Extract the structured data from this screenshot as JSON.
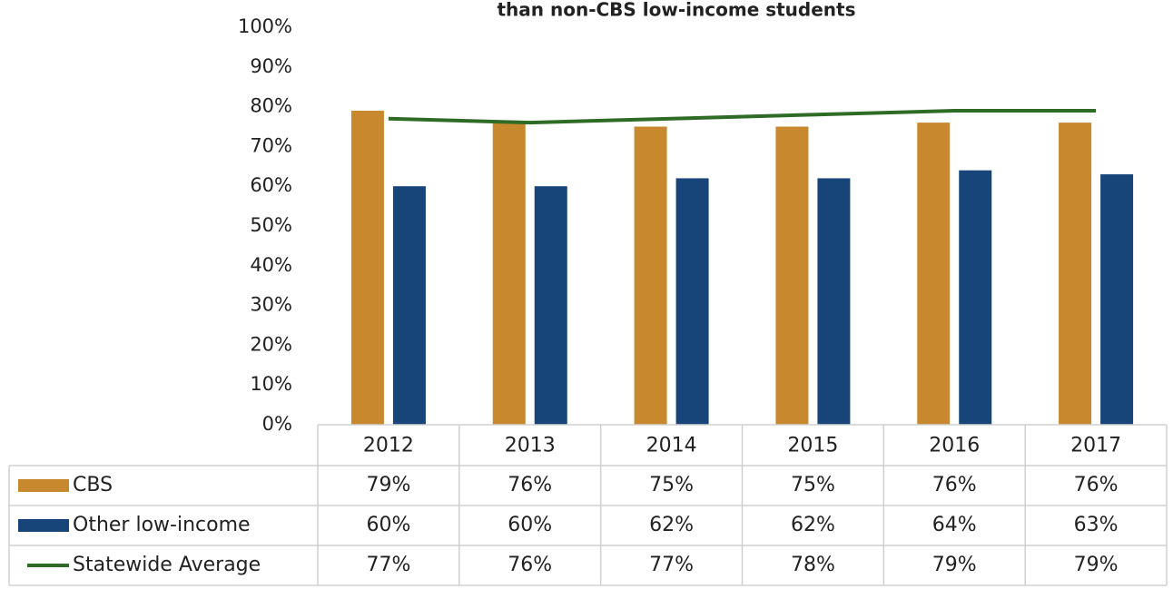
{
  "chart_data": {
    "type": "bar",
    "title": "than non-CBS low-income students",
    "categories": [
      "2012",
      "2013",
      "2014",
      "2015",
      "2016",
      "2017"
    ],
    "series": [
      {
        "name": "CBS",
        "type": "bar",
        "color": "#c8892e",
        "values": [
          79,
          76,
          75,
          75,
          76,
          76
        ],
        "value_labels": [
          "79%",
          "76%",
          "75%",
          "75%",
          "76%",
          "76%"
        ]
      },
      {
        "name": "Other low-income",
        "type": "bar",
        "color": "#17457a",
        "values": [
          60,
          60,
          62,
          62,
          64,
          63
        ],
        "value_labels": [
          "60%",
          "60%",
          "62%",
          "62%",
          "64%",
          "63%"
        ]
      },
      {
        "name": "Statewide Average",
        "type": "line",
        "color": "#2e6b25",
        "values": [
          77,
          76,
          77,
          78,
          79,
          79
        ],
        "value_labels": [
          "77%",
          "76%",
          "77%",
          "78%",
          "79%",
          "79%"
        ]
      }
    ],
    "ylim": [
      0,
      100
    ],
    "yticks": [
      {
        "value": 0,
        "label": "0%"
      },
      {
        "value": 10,
        "label": "10%"
      },
      {
        "value": 20,
        "label": "20%"
      },
      {
        "value": 30,
        "label": "30%"
      },
      {
        "value": 40,
        "label": "40%"
      },
      {
        "value": 50,
        "label": "50%"
      },
      {
        "value": 60,
        "label": "60%"
      },
      {
        "value": 70,
        "label": "70%"
      },
      {
        "value": 80,
        "label": "80%"
      },
      {
        "value": 90,
        "label": "90%"
      },
      {
        "value": 100,
        "label": "100%"
      }
    ]
  }
}
